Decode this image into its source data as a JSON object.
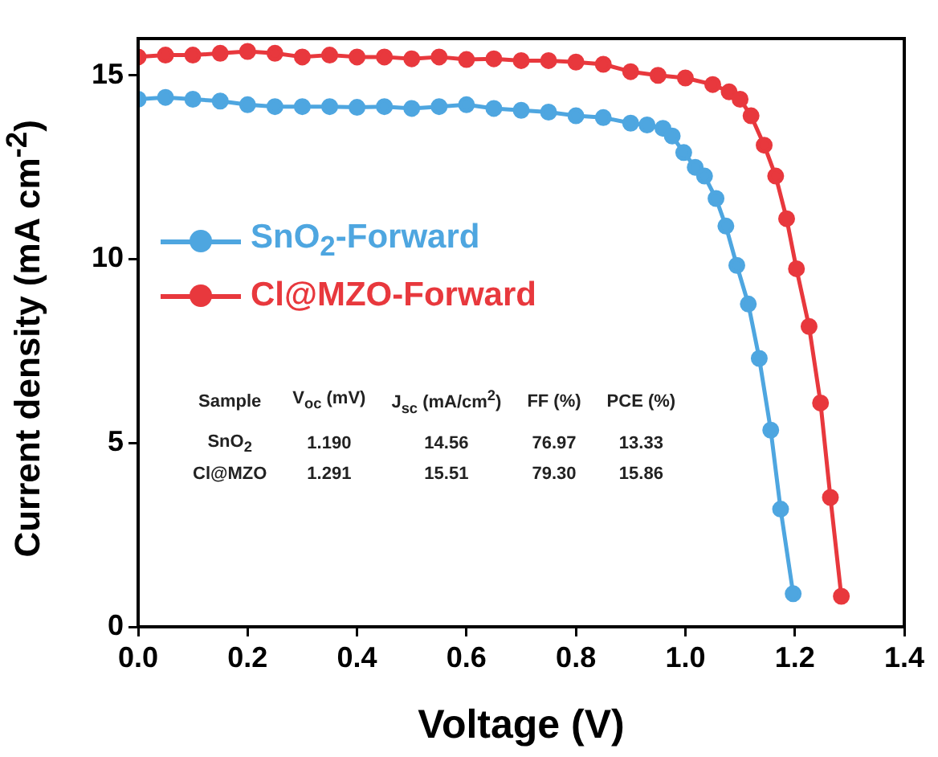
{
  "chart_data": {
    "type": "line",
    "xlabel": "Voltage (V)",
    "ylabel": "Current density (mA cm$^{-2}$)",
    "xlim": [
      0,
      1.4
    ],
    "xticks": [
      {
        "value": 0,
        "label": "0.0"
      },
      0.2,
      0.4,
      0.6,
      0.8,
      {
        "value": 1,
        "label": "1.0"
      },
      1.2,
      1.4
    ],
    "ylim": [
      0,
      16
    ],
    "yticks": [
      0,
      5,
      10,
      15
    ],
    "legend": "top left",
    "marker": "circle",
    "line_style": "solid",
    "series": [
      {
        "name": "SnO$_{2}$-Forward",
        "color": "#4ea6e0",
        "x": [
          0,
          0.05,
          0.1,
          0.15,
          0.2,
          0.25,
          0.3,
          0.35,
          0.4,
          0.45,
          0.5,
          0.55,
          0.6,
          0.65,
          0.7,
          0.75,
          0.8,
          0.85,
          0.9,
          0.93,
          0.959,
          0.976,
          0.997,
          1.018,
          1.035,
          1.056,
          1.074,
          1.094,
          1.115,
          1.135,
          1.156,
          1.174,
          1.197
        ],
        "values": [
          14.35,
          14.4,
          14.35,
          14.3,
          14.2,
          14.15,
          14.15,
          14.15,
          14.13,
          14.15,
          14.1,
          14.15,
          14.2,
          14.1,
          14.05,
          14.0,
          13.9,
          13.85,
          13.7,
          13.65,
          13.56,
          13.35,
          12.9,
          12.5,
          12.26,
          11.65,
          10.9,
          9.83,
          8.78,
          7.3,
          5.35,
          3.2,
          0.9
        ]
      },
      {
        "name": "Cl@MZO-Forward",
        "color": "#e8383d",
        "x": [
          0,
          0.05,
          0.1,
          0.15,
          0.2,
          0.25,
          0.3,
          0.35,
          0.4,
          0.45,
          0.5,
          0.55,
          0.6,
          0.65,
          0.7,
          0.75,
          0.8,
          0.85,
          0.9,
          0.95,
          1.0,
          1.05,
          1.08,
          1.1,
          1.12,
          1.144,
          1.165,
          1.185,
          1.203,
          1.226,
          1.247,
          1.265,
          1.285
        ],
        "values": [
          15.5,
          15.55,
          15.55,
          15.6,
          15.65,
          15.6,
          15.5,
          15.55,
          15.5,
          15.5,
          15.45,
          15.5,
          15.43,
          15.45,
          15.4,
          15.4,
          15.36,
          15.3,
          15.1,
          15.0,
          14.93,
          14.75,
          14.55,
          14.35,
          13.9,
          13.1,
          12.26,
          11.1,
          9.74,
          8.17,
          6.09,
          3.52,
          0.83
        ]
      }
    ],
    "annotations": [
      "Sample",
      "V$_{oc}$ (mV)",
      "J$_{sc}$ (mA/cm$^{2}$)",
      "FF (%)",
      "PCE (%)",
      "SnO$_{2}$",
      "1.190",
      "14.56",
      "76.97",
      "13.33",
      "Cl@MZO",
      "1.291",
      "15.51",
      "79.30",
      "15.86"
    ]
  }
}
